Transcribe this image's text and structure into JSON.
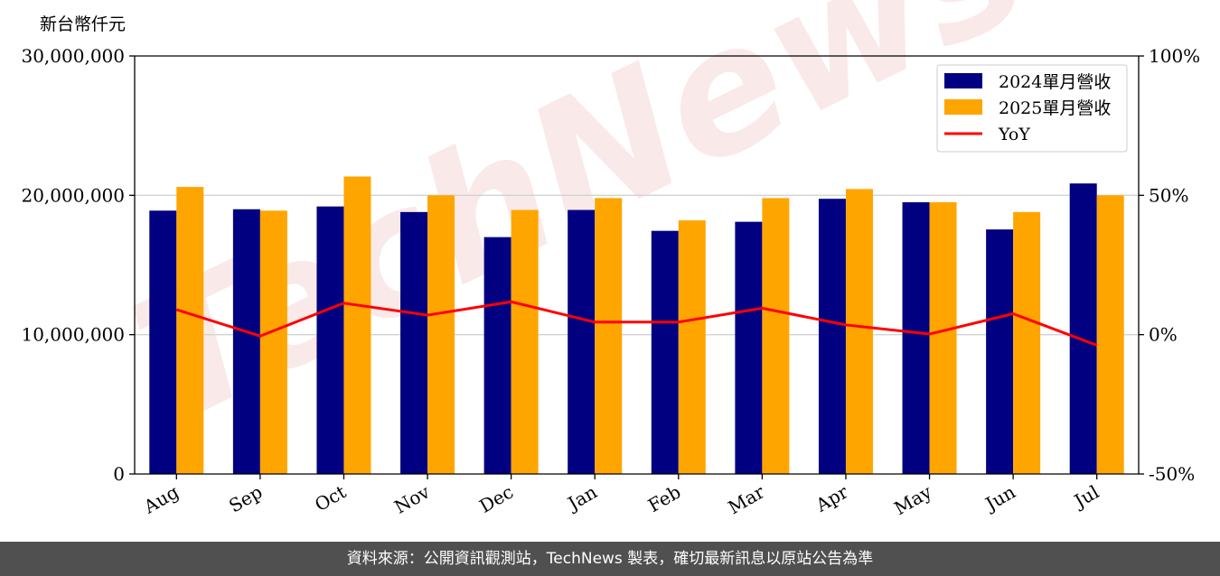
{
  "chart_data": {
    "type": "bar",
    "unit_label": "新台幣仟元",
    "categories": [
      "Aug",
      "Sep",
      "Oct",
      "Nov",
      "Dec",
      "Jan",
      "Feb",
      "Mar",
      "Apr",
      "May",
      "Jun",
      "Jul"
    ],
    "series": [
      {
        "name": "2024單月營收",
        "type": "bar",
        "color": "#000080",
        "values": [
          18900000,
          19000000,
          19200000,
          18800000,
          17000000,
          18950000,
          17450000,
          18100000,
          19750000,
          19500000,
          17550000,
          20850000
        ]
      },
      {
        "name": "2025單月營收",
        "type": "bar",
        "color": "#FFA500",
        "values": [
          20600000,
          18900000,
          21350000,
          20000000,
          18950000,
          19800000,
          18200000,
          19800000,
          20450000,
          19500000,
          18800000,
          20000000
        ]
      },
      {
        "name": "YoY",
        "type": "line",
        "axis": "right",
        "color": "#FF0000",
        "values": [
          9.0,
          -0.5,
          11.3,
          7.0,
          11.8,
          4.5,
          4.5,
          9.5,
          3.5,
          0.2,
          7.5,
          -3.8
        ]
      }
    ],
    "ylim": [
      0,
      30000000
    ],
    "yticks": [
      0,
      10000000,
      20000000,
      30000000
    ],
    "ytick_labels": [
      "0",
      "10,000,000",
      "20,000,000",
      "30,000,000"
    ],
    "y2lim": [
      -50,
      100
    ],
    "y2ticks": [
      -50,
      0,
      50,
      100
    ],
    "y2tick_labels": [
      "-50%",
      "0%",
      "50%",
      "100%"
    ],
    "grid": "horizontal",
    "legend_position": "top-right"
  },
  "watermark": "TechNews",
  "footer": {
    "text": "資料來源：公開資訊觀測站，TechNews 製表，確切最新訊息以原站公告為準"
  }
}
